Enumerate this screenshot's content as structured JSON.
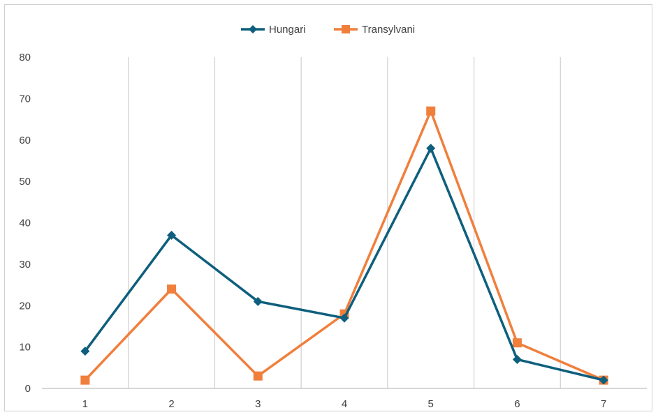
{
  "chart_data": {
    "type": "line",
    "x": [
      1,
      2,
      3,
      4,
      5,
      6,
      7
    ],
    "series": [
      {
        "name": "Hungari",
        "values": [
          9,
          37,
          21,
          17,
          58,
          7,
          2
        ],
        "color": "#0e5f7d",
        "marker": "diamond"
      },
      {
        "name": "Transylvani",
        "values": [
          2,
          24,
          3,
          18,
          67,
          11,
          2
        ],
        "color": "#f07f3c",
        "marker": "square"
      }
    ],
    "ylim": [
      0,
      80
    ],
    "yticks": [
      0,
      10,
      20,
      30,
      40,
      50,
      60,
      70,
      80
    ],
    "grid": "vertical",
    "grid_color": "#d0d0d0",
    "legend_position": "top"
  }
}
